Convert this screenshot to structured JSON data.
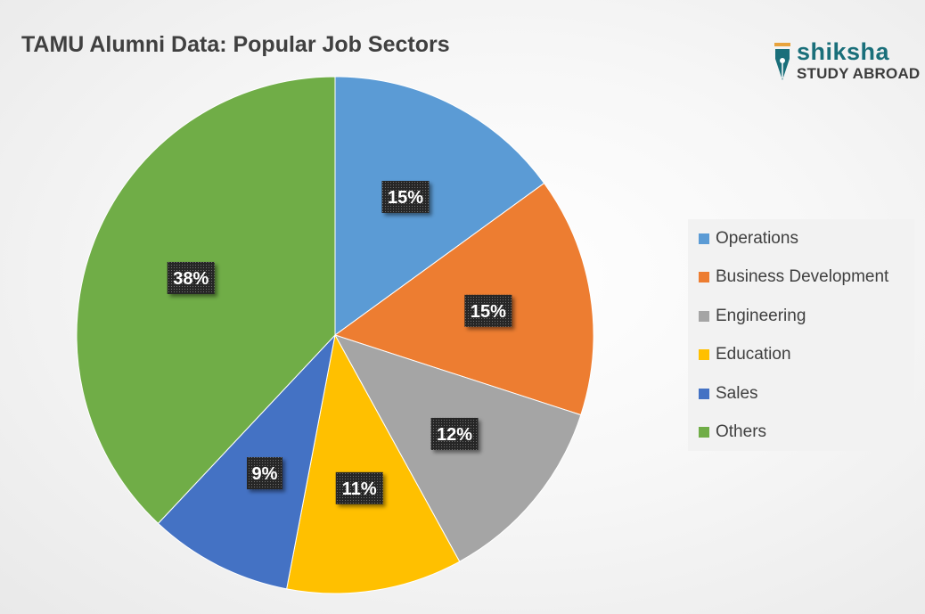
{
  "chart_data": {
    "type": "pie",
    "title": "TAMU Alumni Data: Popular Job Sectors",
    "categories": [
      "Operations",
      "Business Development",
      "Engineering",
      "Education",
      "Sales",
      "Others"
    ],
    "values": [
      15,
      15,
      12,
      11,
      9,
      38
    ],
    "labels": [
      "15%",
      "15%",
      "12%",
      "11%",
      "9%",
      "38%"
    ],
    "colors": [
      "#5b9bd5",
      "#ed7d31",
      "#a5a5a5",
      "#ffc000",
      "#4472c4",
      "#70ad47"
    ],
    "legend_position": "right",
    "start_angle": "12 o'clock, clockwise"
  },
  "brand": {
    "name": "shiksha",
    "subtitle": "STUDY ABROAD"
  }
}
